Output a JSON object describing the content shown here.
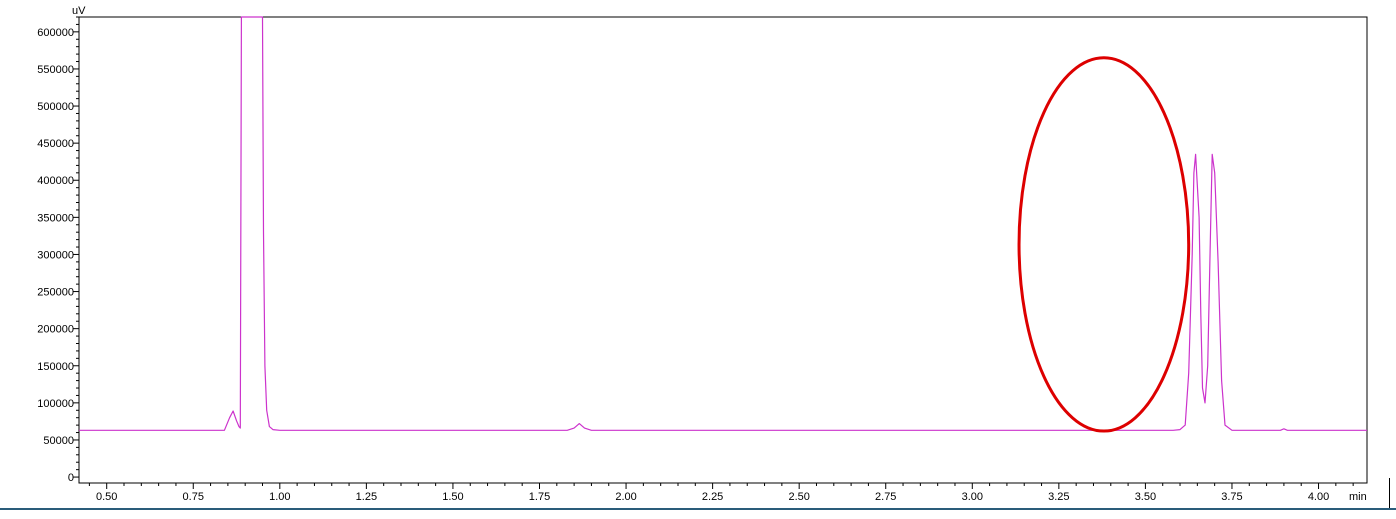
{
  "chart_data": {
    "type": "line",
    "title": "",
    "xlabel": "",
    "ylabel": "",
    "x_unit": "min",
    "y_unit": "uV",
    "xlim": [
      0.42,
      4.14
    ],
    "ylim": [
      -8000,
      620000
    ],
    "x_ticks": [
      0.5,
      0.75,
      1.0,
      1.25,
      1.5,
      1.75,
      2.0,
      2.25,
      2.5,
      2.75,
      3.0,
      3.25,
      3.5,
      3.75,
      4.0
    ],
    "x_tick_labels": [
      "0.50",
      "0.75",
      "1.00",
      "1.25",
      "1.50",
      "1.75",
      "2.00",
      "2.25",
      "2.50",
      "2.75",
      "3.00",
      "3.25",
      "3.50",
      "3.75",
      "4.00"
    ],
    "y_ticks": [
      0,
      50000,
      100000,
      150000,
      200000,
      250000,
      300000,
      350000,
      400000,
      450000,
      500000,
      550000,
      600000
    ],
    "y_tick_labels": [
      "0",
      "50000",
      "100000",
      "150000",
      "200000",
      "250000",
      "300000",
      "350000",
      "400000",
      "450000",
      "500000",
      "550000",
      "600000"
    ],
    "grid": false,
    "legend": "none",
    "series": [
      {
        "color": "#cc33cc",
        "x": [
          0.42,
          0.84,
          0.855,
          0.865,
          0.875,
          0.882,
          0.886,
          0.889,
          0.95,
          0.953,
          0.957,
          0.962,
          0.97,
          0.98,
          1.0,
          1.83,
          1.85,
          1.865,
          1.88,
          1.9,
          3.58,
          3.6,
          3.615,
          3.625,
          3.635,
          3.64,
          3.645,
          3.655,
          3.66,
          3.665,
          3.672,
          3.68,
          3.688,
          3.693,
          3.7,
          3.71,
          3.72,
          3.73,
          3.75,
          3.89,
          3.9,
          3.91,
          4.14
        ],
        "y": [
          63000,
          63000,
          80000,
          89000,
          76000,
          68000,
          66000,
          620000,
          620000,
          330000,
          150000,
          90000,
          68000,
          64000,
          63000,
          63000,
          66000,
          72000,
          66000,
          63000,
          63000,
          64000,
          70000,
          140000,
          300000,
          410000,
          435000,
          350000,
          220000,
          120000,
          100000,
          150000,
          330000,
          435000,
          410000,
          290000,
          130000,
          70000,
          63000,
          63000,
          65000,
          63000,
          63000
        ]
      }
    ],
    "annotations": [
      {
        "shape": "ellipse",
        "color": "#dd0000",
        "x_range": [
          3.135,
          3.625
        ],
        "y_range": [
          62000,
          565000
        ]
      }
    ]
  }
}
